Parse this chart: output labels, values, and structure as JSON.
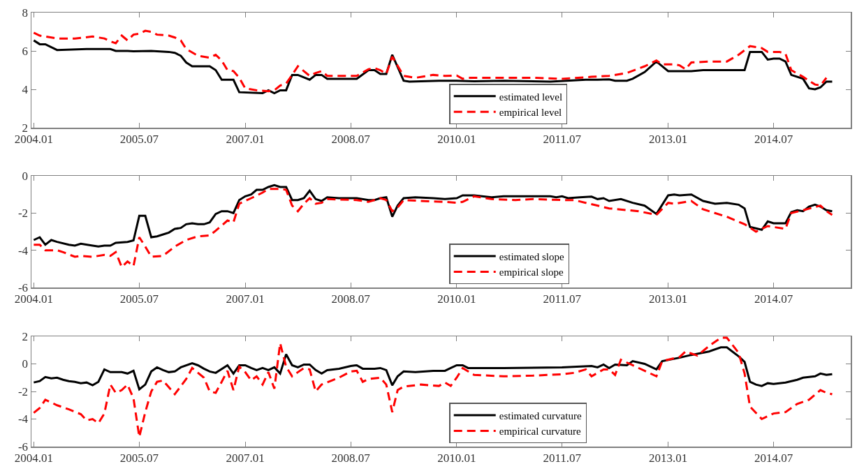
{
  "chart_data": [
    {
      "type": "line",
      "legend": "bottom",
      "xlim": [
        "2003-12-20",
        "2015-08-05"
      ],
      "xticks": [
        {
          "value": "2004-01",
          "label": "2004.01"
        },
        {
          "value": "2005-07",
          "label": "2005.07"
        },
        {
          "value": "2007-01",
          "label": "2007.01"
        },
        {
          "value": "2008-07",
          "label": "2008.07"
        },
        {
          "value": "2010-01",
          "label": "2010.01"
        },
        {
          "value": "2011-07",
          "label": "2011.07"
        },
        {
          "value": "2013-01",
          "label": "2013.01"
        },
        {
          "value": "2014-07",
          "label": "2014.07"
        }
      ],
      "ylim": [
        2,
        8
      ],
      "yticks": [
        2,
        4,
        6,
        8
      ],
      "series": [
        {
          "name": "estimated level",
          "color": "#000000",
          "line_style": "solid",
          "x": [
            "2004-01",
            "2004-02",
            "2004-03",
            "2004-05",
            "2004-10",
            "2005-02",
            "2005-03",
            "2005-05",
            "2005-06",
            "2005-09",
            "2005-12",
            "2006-01",
            "2006-02",
            "2006-03",
            "2006-04",
            "2006-07",
            "2006-08",
            "2006-09",
            "2006-11",
            "2006-12",
            "2007-04",
            "2007-05",
            "2007-06",
            "2007-07",
            "2007-08",
            "2007-09",
            "2007-10",
            "2007-12",
            "2008-01",
            "2008-02",
            "2008-03",
            "2008-08",
            "2008-10",
            "2008-11",
            "2008-12",
            "2009-01",
            "2009-02",
            "2009-04",
            "2009-05",
            "2009-10",
            "2010-01",
            "2010-04",
            "2010-09",
            "2011-05",
            "2011-11",
            "2012-01",
            "2012-03",
            "2012-04",
            "2012-06",
            "2012-07",
            "2012-09",
            "2012-11",
            "2013-01",
            "2013-05",
            "2013-07",
            "2014-02",
            "2014-03",
            "2014-05",
            "2014-06",
            "2014-07",
            "2014-08",
            "2014-09",
            "2014-10",
            "2014-12",
            "2015-01",
            "2015-02",
            "2015-03",
            "2015-04",
            "2015-05"
          ],
          "values": [
            6.55,
            6.35,
            6.35,
            6.05,
            6.1,
            6.1,
            6.0,
            6.0,
            5.98,
            6.0,
            5.95,
            5.9,
            5.75,
            5.4,
            5.2,
            5.2,
            5.0,
            4.5,
            4.5,
            3.85,
            3.8,
            3.95,
            3.8,
            3.95,
            3.95,
            4.75,
            4.75,
            4.5,
            4.75,
            4.75,
            4.55,
            4.55,
            5.0,
            5.0,
            4.8,
            4.8,
            5.8,
            4.45,
            4.4,
            4.45,
            4.45,
            4.42,
            4.45,
            4.4,
            4.5,
            4.5,
            4.52,
            4.45,
            4.45,
            4.55,
            4.9,
            5.45,
            4.95,
            4.95,
            5.0,
            5.0,
            5.95,
            5.95,
            5.55,
            5.6,
            5.6,
            5.45,
            4.75,
            4.55,
            4.05,
            4.0,
            4.1,
            4.4,
            4.4
          ]
        },
        {
          "name": "empirical level",
          "color": "#ff0000",
          "line_style": "dashed",
          "x": [
            "2004-01",
            "2004-02",
            "2004-05",
            "2004-08",
            "2004-11",
            "2005-01",
            "2005-02",
            "2005-03",
            "2005-04",
            "2005-05",
            "2005-06",
            "2005-07",
            "2005-08",
            "2005-09",
            "2005-10",
            "2005-12",
            "2006-01",
            "2006-02",
            "2006-03",
            "2006-05",
            "2006-07",
            "2006-08",
            "2006-09",
            "2006-10",
            "2006-11",
            "2006-12",
            "2007-01",
            "2007-03",
            "2007-05",
            "2007-06",
            "2007-07",
            "2007-08",
            "2007-09",
            "2007-10",
            "2007-12",
            "2008-01",
            "2008-02",
            "2008-03",
            "2008-08",
            "2008-10",
            "2008-11",
            "2008-12",
            "2009-01",
            "2009-02",
            "2009-04",
            "2009-06",
            "2009-09",
            "2009-11",
            "2010-01",
            "2010-02",
            "2010-03",
            "2011-02",
            "2011-07",
            "2011-12",
            "2012-03",
            "2012-06",
            "2012-09",
            "2012-11",
            "2012-12",
            "2013-02",
            "2013-03",
            "2013-04",
            "2013-05",
            "2013-08",
            "2013-11",
            "2014-01",
            "2014-03",
            "2014-05",
            "2014-06",
            "2014-08",
            "2014-09",
            "2014-10",
            "2014-12",
            "2015-02",
            "2015-03",
            "2015-04"
          ],
          "values": [
            6.95,
            6.8,
            6.65,
            6.65,
            6.75,
            6.65,
            6.5,
            6.4,
            6.8,
            6.55,
            6.85,
            6.9,
            7.05,
            7.0,
            6.85,
            6.8,
            6.7,
            6.55,
            6.1,
            5.75,
            5.65,
            5.8,
            5.5,
            5.0,
            4.95,
            4.6,
            4.05,
            3.95,
            3.9,
            3.95,
            4.2,
            4.3,
            4.75,
            5.2,
            4.7,
            4.85,
            4.95,
            4.7,
            4.7,
            5.05,
            5.1,
            5.0,
            4.8,
            5.7,
            4.7,
            4.6,
            4.75,
            4.7,
            4.72,
            4.55,
            4.6,
            4.6,
            4.55,
            4.65,
            4.7,
            4.85,
            5.2,
            5.5,
            5.3,
            5.3,
            5.25,
            5.05,
            5.4,
            5.45,
            5.45,
            5.8,
            6.25,
            6.15,
            5.95,
            5.95,
            5.85,
            5.0,
            4.65,
            4.25,
            4.2,
            4.6
          ]
        }
      ]
    },
    {
      "type": "line",
      "legend": "bottom",
      "xlim": [
        "2003-12-20",
        "2015-08-05"
      ],
      "xticks": [
        {
          "value": "2004-01",
          "label": "2004.01"
        },
        {
          "value": "2005-07",
          "label": "2005.07"
        },
        {
          "value": "2007-01",
          "label": "2007.01"
        },
        {
          "value": "2008-07",
          "label": "2008.07"
        },
        {
          "value": "2010-01",
          "label": "2010.01"
        },
        {
          "value": "2011-07",
          "label": "2011.07"
        },
        {
          "value": "2013-01",
          "label": "2013.01"
        },
        {
          "value": "2014-07",
          "label": "2014.07"
        }
      ],
      "ylim": [
        -6,
        0
      ],
      "yticks": [
        -6,
        -4,
        -2,
        0
      ],
      "series": [
        {
          "name": "estimated slope",
          "color": "#000000",
          "line_style": "solid",
          "x": [
            "2004-01",
            "2004-02",
            "2004-03",
            "2004-04",
            "2004-05",
            "2004-07",
            "2004-08",
            "2004-09",
            "2004-11",
            "2004-12",
            "2005-01",
            "2005-02",
            "2005-03",
            "2005-05",
            "2005-06",
            "2005-07",
            "2005-08",
            "2005-09",
            "2005-10",
            "2005-11",
            "2005-12",
            "2006-01",
            "2006-02",
            "2006-03",
            "2006-04",
            "2006-05",
            "2006-06",
            "2006-07",
            "2006-08",
            "2006-09",
            "2006-10",
            "2006-11",
            "2006-12",
            "2007-01",
            "2007-02",
            "2007-03",
            "2007-04",
            "2007-05",
            "2007-06",
            "2007-07",
            "2007-08",
            "2007-09",
            "2007-10",
            "2007-11",
            "2007-12",
            "2008-01",
            "2008-02",
            "2008-03",
            "2008-05",
            "2008-08",
            "2008-10",
            "2008-11",
            "2008-12",
            "2009-01",
            "2009-02",
            "2009-03",
            "2009-04",
            "2009-06",
            "2009-09",
            "2009-11",
            "2010-01",
            "2010-02",
            "2010-04",
            "2010-07",
            "2010-09",
            "2011-05",
            "2011-06",
            "2011-07",
            "2011-08",
            "2011-10",
            "2011-12",
            "2012-01",
            "2012-02",
            "2012-03",
            "2012-05",
            "2012-07",
            "2012-09",
            "2012-11",
            "2013-01",
            "2013-02",
            "2013-03",
            "2013-05",
            "2013-07",
            "2013-09",
            "2013-11",
            "2014-01",
            "2014-02",
            "2014-03",
            "2014-05",
            "2014-06",
            "2014-07",
            "2014-09",
            "2014-10",
            "2014-11",
            "2014-12",
            "2015-01",
            "2015-02",
            "2015-03",
            "2015-04",
            "2015-05"
          ],
          "values": [
            -3.45,
            -3.3,
            -3.7,
            -3.45,
            -3.55,
            -3.7,
            -3.75,
            -3.65,
            -3.75,
            -3.8,
            -3.75,
            -3.75,
            -3.6,
            -3.55,
            -3.47,
            -2.15,
            -2.15,
            -3.3,
            -3.25,
            -3.15,
            -3.05,
            -2.85,
            -2.8,
            -2.6,
            -2.55,
            -2.6,
            -2.6,
            -2.5,
            -2.05,
            -1.9,
            -1.9,
            -2.0,
            -1.3,
            -1.1,
            -1.0,
            -0.75,
            -0.75,
            -0.6,
            -0.5,
            -0.6,
            -0.6,
            -1.3,
            -1.3,
            -1.2,
            -0.8,
            -1.25,
            -1.35,
            -1.15,
            -1.2,
            -1.2,
            -1.3,
            -1.3,
            -1.2,
            -1.15,
            -2.2,
            -1.6,
            -1.2,
            -1.15,
            -1.2,
            -1.25,
            -1.2,
            -1.05,
            -1.05,
            -1.15,
            -1.1,
            -1.1,
            -1.15,
            -1.1,
            -1.2,
            -1.15,
            -1.12,
            -1.25,
            -1.2,
            -1.35,
            -1.25,
            -1.45,
            -1.6,
            -2.05,
            -1.05,
            -1.0,
            -1.05,
            -1.0,
            -1.35,
            -1.5,
            -1.45,
            -1.55,
            -1.75,
            -2.75,
            -2.9,
            -2.45,
            -2.55,
            -2.55,
            -1.95,
            -1.85,
            -1.9,
            -1.65,
            -1.55,
            -1.65,
            -1.85,
            -1.9
          ]
        },
        {
          "name": "empirical slope",
          "color": "#ff0000",
          "line_style": "dashed",
          "x": [
            "2004-01",
            "2004-02",
            "2004-03",
            "2004-05",
            "2004-06",
            "2004-08",
            "2004-09",
            "2004-11",
            "2005-01",
            "2005-02",
            "2005-03",
            "2005-04",
            "2005-05",
            "2005-06",
            "2005-07",
            "2005-08",
            "2005-09",
            "2005-11",
            "2006-01",
            "2006-03",
            "2006-05",
            "2006-07",
            "2006-08",
            "2006-10",
            "2006-11",
            "2006-12",
            "2007-02",
            "2007-04",
            "2007-05",
            "2007-07",
            "2007-08",
            "2007-09",
            "2007-10",
            "2007-11",
            "2007-12",
            "2008-01",
            "2008-02",
            "2008-03",
            "2008-08",
            "2008-10",
            "2008-12",
            "2009-01",
            "2009-02",
            "2009-03",
            "2009-04",
            "2009-07",
            "2009-11",
            "2010-01",
            "2010-02",
            "2010-04",
            "2010-07",
            "2010-11",
            "2011-02",
            "2011-07",
            "2011-09",
            "2011-11",
            "2012-03",
            "2012-08",
            "2012-11",
            "2013-01",
            "2013-02",
            "2013-05",
            "2013-07",
            "2013-11",
            "2014-02",
            "2014-04",
            "2014-06",
            "2014-09",
            "2014-10",
            "2014-12",
            "2015-03",
            "2015-04",
            "2015-05"
          ],
          "values": [
            -3.7,
            -3.7,
            -4.0,
            -4.0,
            -4.1,
            -4.35,
            -4.3,
            -4.35,
            -4.25,
            -4.3,
            -4.1,
            -4.9,
            -4.6,
            -4.85,
            -3.3,
            -3.8,
            -4.35,
            -4.3,
            -3.8,
            -3.45,
            -3.25,
            -3.2,
            -2.95,
            -2.4,
            -2.5,
            -1.5,
            -1.2,
            -0.9,
            -0.7,
            -0.7,
            -0.75,
            -1.6,
            -1.9,
            -1.5,
            -1.2,
            -1.5,
            -1.45,
            -1.25,
            -1.3,
            -1.4,
            -1.2,
            -1.3,
            -1.9,
            -1.7,
            -1.3,
            -1.35,
            -1.4,
            -1.45,
            -1.4,
            -1.1,
            -1.25,
            -1.3,
            -1.25,
            -1.3,
            -1.3,
            -1.45,
            -1.75,
            -1.9,
            -2.1,
            -1.45,
            -1.5,
            -1.35,
            -1.8,
            -2.2,
            -2.6,
            -3.0,
            -2.7,
            -2.85,
            -2.0,
            -1.85,
            -1.6,
            -1.9,
            -2.1
          ]
        }
      ]
    },
    {
      "type": "line",
      "legend": "bottom",
      "xlim": [
        "2003-12-20",
        "2015-08-05"
      ],
      "xticks": [
        {
          "value": "2004-01",
          "label": "2004.01"
        },
        {
          "value": "2005-07",
          "label": "2005.07"
        },
        {
          "value": "2007-01",
          "label": "2007.01"
        },
        {
          "value": "2008-07",
          "label": "2008.07"
        },
        {
          "value": "2010-01",
          "label": "2010.01"
        },
        {
          "value": "2011-07",
          "label": "2011.07"
        },
        {
          "value": "2013-01",
          "label": "2013.01"
        },
        {
          "value": "2014-07",
          "label": "2014.07"
        }
      ],
      "ylim": [
        -6,
        2
      ],
      "yticks": [
        -6,
        -4,
        -2,
        0,
        2
      ],
      "series": [
        {
          "name": "estimated curvature",
          "color": "#000000",
          "line_style": "solid",
          "x": [
            "2004-01",
            "2004-02",
            "2004-03",
            "2004-04",
            "2004-05",
            "2004-06",
            "2004-07",
            "2004-08",
            "2004-09",
            "2004-10",
            "2004-11",
            "2004-12",
            "2005-01",
            "2005-02",
            "2005-04",
            "2005-05",
            "2005-06",
            "2005-07",
            "2005-08",
            "2005-09",
            "2005-10",
            "2005-11",
            "2005-12",
            "2006-01",
            "2006-02",
            "2006-04",
            "2006-05",
            "2006-06",
            "2006-07",
            "2006-08",
            "2006-10",
            "2006-11",
            "2006-12",
            "2007-01",
            "2007-02",
            "2007-03",
            "2007-04",
            "2007-05",
            "2007-06",
            "2007-07",
            "2007-08",
            "2007-09",
            "2007-10",
            "2007-11",
            "2007-12",
            "2008-01",
            "2008-02",
            "2008-03",
            "2008-05",
            "2008-07",
            "2008-08",
            "2008-09",
            "2008-11",
            "2008-12",
            "2009-01",
            "2009-02",
            "2009-03",
            "2009-04",
            "2009-06",
            "2009-09",
            "2009-11",
            "2009-12",
            "2010-01",
            "2010-02",
            "2010-03",
            "2010-09",
            "2011-07",
            "2011-12",
            "2012-01",
            "2012-02",
            "2012-03",
            "2012-04",
            "2012-06",
            "2012-07",
            "2012-09",
            "2012-11",
            "2012-12",
            "2013-03",
            "2013-05",
            "2013-08",
            "2013-10",
            "2013-11",
            "2014-01",
            "2014-02",
            "2014-03",
            "2014-04",
            "2014-05",
            "2014-06",
            "2014-07",
            "2014-09",
            "2014-11",
            "2014-12",
            "2015-02",
            "2015-03",
            "2015-04",
            "2015-05"
          ],
          "values": [
            -1.35,
            -1.25,
            -0.95,
            -1.05,
            -1.0,
            -1.15,
            -1.25,
            -1.3,
            -1.4,
            -1.35,
            -1.55,
            -1.3,
            -0.4,
            -0.6,
            -0.6,
            -0.7,
            -0.5,
            -1.85,
            -1.5,
            -0.55,
            -0.25,
            -0.45,
            -0.6,
            -0.55,
            -0.25,
            0.05,
            -0.1,
            -0.35,
            -0.55,
            -0.65,
            -0.1,
            -0.7,
            -0.1,
            -0.1,
            -0.3,
            -0.45,
            -0.3,
            -0.45,
            -0.25,
            -0.7,
            0.7,
            -0.1,
            -0.25,
            -0.05,
            -0.05,
            -0.45,
            -0.7,
            -0.45,
            -0.35,
            -0.15,
            -0.1,
            -0.35,
            -0.35,
            -0.3,
            -0.45,
            -1.55,
            -0.9,
            -0.55,
            -0.6,
            -0.5,
            -0.5,
            -0.3,
            -0.1,
            -0.1,
            -0.3,
            -0.3,
            -0.25,
            -0.15,
            -0.25,
            -0.05,
            -0.3,
            -0.05,
            -0.1,
            0.2,
            0.0,
            -0.4,
            0.2,
            0.45,
            0.65,
            0.9,
            1.2,
            1.2,
            0.55,
            0.15,
            -1.3,
            -1.5,
            -1.6,
            -1.4,
            -1.45,
            -1.35,
            -1.15,
            -1.0,
            -0.9,
            -0.7,
            -0.8,
            -0.75
          ]
        },
        {
          "name": "empirical curvature",
          "color": "#ff0000",
          "line_style": "dashed",
          "x": [
            "2004-01",
            "2004-02",
            "2004-03",
            "2004-05",
            "2004-07",
            "2004-09",
            "2004-10",
            "2004-11",
            "2004-12",
            "2005-01",
            "2005-02",
            "2005-03",
            "2005-04",
            "2005-05",
            "2005-06",
            "2005-07",
            "2005-08",
            "2005-09",
            "2005-10",
            "2005-11",
            "2006-01",
            "2006-03",
            "2006-04",
            "2006-06",
            "2006-07",
            "2006-08",
            "2006-09",
            "2006-10",
            "2006-11",
            "2006-12",
            "2007-01",
            "2007-02",
            "2007-03",
            "2007-04",
            "2007-05",
            "2007-06",
            "2007-07",
            "2007-08",
            "2007-09",
            "2007-10",
            "2007-11",
            "2007-12",
            "2008-01",
            "2008-02",
            "2008-05",
            "2008-07",
            "2008-08",
            "2008-09",
            "2008-10",
            "2008-12",
            "2009-01",
            "2009-02",
            "2009-03",
            "2009-04",
            "2009-07",
            "2009-10",
            "2009-11",
            "2009-12",
            "2010-01",
            "2010-02",
            "2010-04",
            "2010-09",
            "2011-02",
            "2011-07",
            "2011-09",
            "2011-11",
            "2011-12",
            "2012-02",
            "2012-03",
            "2012-04",
            "2012-05",
            "2012-07",
            "2012-09",
            "2012-11",
            "2012-12",
            "2013-03",
            "2013-04",
            "2013-06",
            "2013-08",
            "2013-10",
            "2013-11",
            "2014-01",
            "2014-02",
            "2014-03",
            "2014-05",
            "2014-07",
            "2014-09",
            "2014-11",
            "2015-01",
            "2015-03",
            "2015-04",
            "2015-05"
          ],
          "values": [
            -3.55,
            -3.2,
            -2.6,
            -3.0,
            -3.3,
            -3.65,
            -4.1,
            -4.0,
            -4.3,
            -3.6,
            -1.5,
            -2.1,
            -1.9,
            -1.5,
            -2.5,
            -5.3,
            -3.5,
            -2.0,
            -1.3,
            -1.2,
            -2.2,
            -1.1,
            -0.3,
            -1.0,
            -2.0,
            -2.1,
            -1.3,
            -0.5,
            -1.9,
            -0.2,
            -0.6,
            -1.2,
            -0.9,
            -1.5,
            -0.6,
            -1.8,
            1.5,
            -0.2,
            -0.9,
            -0.6,
            -0.3,
            -0.4,
            -2.0,
            -1.5,
            -1.0,
            -0.55,
            -0.5,
            -1.3,
            -1.1,
            -1.0,
            -1.5,
            -3.5,
            -1.9,
            -1.65,
            -1.5,
            -1.6,
            -1.35,
            -1.6,
            -1.0,
            -0.3,
            -0.8,
            -0.9,
            -0.85,
            -0.75,
            -0.65,
            -0.4,
            -0.9,
            -0.4,
            -0.4,
            -0.8,
            0.3,
            -0.1,
            -0.5,
            -0.9,
            0.2,
            0.5,
            0.9,
            0.6,
            1.3,
            1.9,
            1.9,
            0.8,
            -0.7,
            -3.1,
            -4.0,
            -3.6,
            -3.5,
            -2.9,
            -2.6,
            -1.9,
            -2.1,
            -2.2
          ]
        }
      ]
    }
  ]
}
